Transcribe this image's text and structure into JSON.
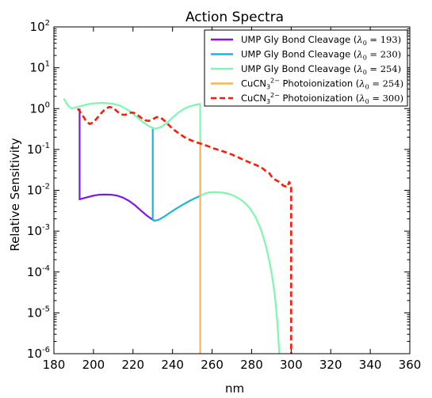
{
  "chart_data": {
    "type": "line",
    "title": "Action Spectra",
    "xlabel": "nm",
    "ylabel": "Relative Sensitivity",
    "xlim": [
      180,
      360
    ],
    "ylim_log10": [
      -6,
      2
    ],
    "yscale": "log",
    "xticks": [
      "180",
      "200",
      "220",
      "240",
      "260",
      "280",
      "300",
      "320",
      "340",
      "360"
    ],
    "xtick_values": [
      180,
      200,
      220,
      240,
      260,
      280,
      300,
      320,
      340,
      360
    ],
    "yticks": [
      {
        "base": "10",
        "exp": "-6",
        "value": -6
      },
      {
        "base": "10",
        "exp": "-5",
        "value": -5
      },
      {
        "base": "10",
        "exp": "-4",
        "value": -4
      },
      {
        "base": "10",
        "exp": "-3",
        "value": -3
      },
      {
        "base": "10",
        "exp": "-2",
        "value": -2
      },
      {
        "base": "10",
        "exp": "-1",
        "value": -1
      },
      {
        "base": "10",
        "exp": "0",
        "value": 0
      },
      {
        "base": "10",
        "exp": "1",
        "value": 1
      },
      {
        "base": "10",
        "exp": "2",
        "value": 2
      }
    ],
    "legend_position": "top-right",
    "series": [
      {
        "name": "UMP Gly Bond Cleavage (λ0 = 193)",
        "legend_main": "UMP Gly Bond Cleavage (",
        "legend_lambda": "λ",
        "legend_sub": "0",
        "legend_eq": " = 193)",
        "color": "#7f17e8",
        "dash": "solid",
        "x": [
          193,
          193,
          194,
          197,
          200,
          203,
          206,
          209,
          212,
          215,
          218,
          221,
          224,
          227,
          230,
          231
        ],
        "y": [
          1.0,
          0.006,
          0.0062,
          0.0068,
          0.0074,
          0.0078,
          0.0079,
          0.0078,
          0.0074,
          0.0066,
          0.0055,
          0.0043,
          0.0032,
          0.0024,
          0.0019,
          0.0018
        ]
      },
      {
        "name": "UMP Gly Bond Cleavage (λ0 = 230)",
        "legend_main": "UMP Gly Bond Cleavage (",
        "legend_lambda": "λ",
        "legend_sub": "0",
        "legend_eq": " = 230)",
        "color": "#1fb4da",
        "dash": "solid",
        "x": [
          230,
          230,
          231,
          233,
          236,
          239,
          242,
          245,
          248,
          251,
          254
        ],
        "y": [
          0.32,
          0.0019,
          0.0018,
          0.0019,
          0.0023,
          0.0029,
          0.0036,
          0.0044,
          0.0053,
          0.0063,
          0.0073
        ]
      },
      {
        "name": "UMP Gly Bond Cleavage (λ0 = 254)",
        "legend_main": "UMP Gly Bond Cleavage (",
        "legend_lambda": "λ",
        "legend_sub": "0",
        "legend_eq": " = 254)",
        "color": "#7ef7b0",
        "dash": "solid",
        "x": [
          185,
          186,
          187,
          189,
          192,
          195,
          198,
          201,
          204,
          207,
          210,
          213,
          216,
          219,
          222,
          225,
          228,
          231,
          234,
          237,
          240,
          243,
          246,
          249,
          252,
          254,
          254,
          256,
          258,
          261,
          264,
          267,
          270,
          273,
          276,
          279,
          282,
          285,
          287,
          289,
          290,
          291,
          292,
          293,
          293.5,
          294
        ],
        "y": [
          1.75,
          1.45,
          1.2,
          1.0,
          1.1,
          1.2,
          1.3,
          1.35,
          1.38,
          1.36,
          1.3,
          1.2,
          1.02,
          0.82,
          0.62,
          0.47,
          0.37,
          0.32,
          0.35,
          0.44,
          0.6,
          0.8,
          1.0,
          1.15,
          1.25,
          1.3,
          0.0073,
          0.0082,
          0.0088,
          0.009,
          0.0089,
          0.0085,
          0.0077,
          0.0066,
          0.0052,
          0.0037,
          0.0022,
          0.001,
          0.00048,
          0.00018,
          0.0001,
          5e-05,
          2e-05,
          6e-06,
          2.5e-06,
          1e-06
        ]
      },
      {
        "name": "CuCN3 2− Photoionization (λ0 = 254)",
        "legend_main": "CuCN",
        "legend_sub3": "3",
        "legend_sup": "2−",
        "legend_rest": " Photoionization (",
        "legend_lambda": "λ",
        "legend_sub": "0",
        "legend_eq": " = 254)",
        "color": "#f9b45f",
        "dash": "solid",
        "x": [
          254,
          254
        ],
        "y": [
          0.16,
          1e-06
        ]
      },
      {
        "name": "CuCN3 2− Photoionization (λ0 = 300)",
        "legend_main": "CuCN",
        "legend_sub3": "3",
        "legend_sup": "2−",
        "legend_rest": " Photoionization (",
        "legend_lambda": "λ",
        "legend_sub": "0",
        "legend_eq": " = 300)",
        "color": "#ff1a0a",
        "dash": "dashed",
        "x": [
          192,
          194,
          196,
          198,
          200,
          202,
          204,
          206,
          208,
          210,
          212,
          214,
          216,
          218,
          220,
          222,
          224,
          226,
          228,
          230,
          232,
          234,
          236,
          238,
          240,
          243,
          246,
          249,
          252,
          255,
          258,
          261,
          264,
          267,
          270,
          273,
          276,
          279,
          282,
          285,
          287,
          289,
          290,
          291,
          292,
          293,
          294,
          296,
          298,
          299,
          300,
          300
        ],
        "y": [
          1.0,
          0.75,
          0.52,
          0.42,
          0.46,
          0.6,
          0.78,
          0.98,
          1.1,
          1.05,
          0.85,
          0.72,
          0.7,
          0.78,
          0.8,
          0.72,
          0.6,
          0.52,
          0.5,
          0.55,
          0.62,
          0.6,
          0.5,
          0.4,
          0.32,
          0.25,
          0.2,
          0.17,
          0.15,
          0.135,
          0.12,
          0.105,
          0.095,
          0.085,
          0.075,
          0.065,
          0.055,
          0.048,
          0.042,
          0.036,
          0.03,
          0.026,
          0.022,
          0.02,
          0.018,
          0.017,
          0.016,
          0.013,
          0.012,
          0.016,
          0.013,
          1e-06
        ]
      }
    ]
  }
}
